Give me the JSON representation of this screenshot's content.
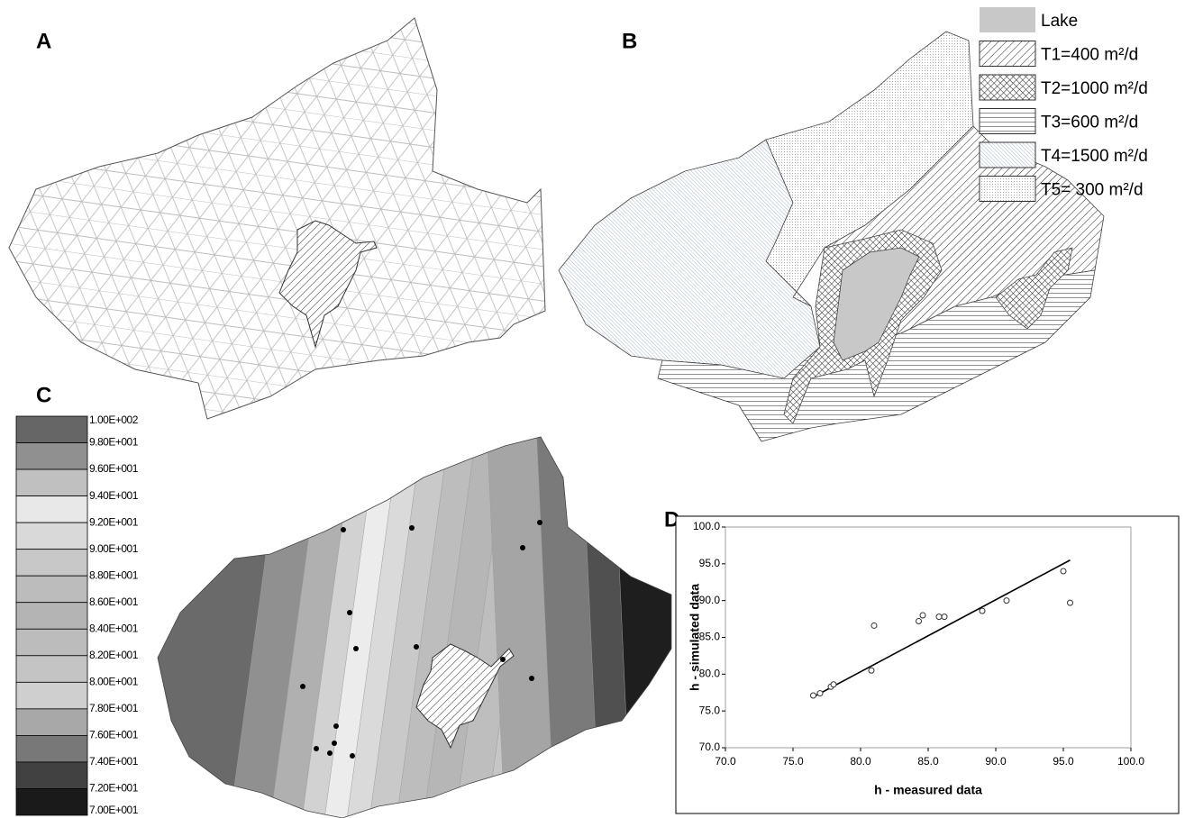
{
  "panels": {
    "a": "A",
    "b": "B",
    "c": "C",
    "d": "D"
  },
  "legend_b": [
    "Lake",
    "T1=400 m²/d",
    "T2=1000 m²/d",
    "T3=600 m²/d",
    "T4=1500 m²/d",
    "T5= 300 m²/d"
  ],
  "legend_c": [
    "1.00E+002",
    "9.80E+001",
    "9.60E+001",
    "9.40E+001",
    "9.20E+001",
    "9.00E+001",
    "8.80E+001",
    "8.60E+001",
    "8.40E+001",
    "8.20E+001",
    "8.00E+001",
    "7.80E+001",
    "7.60E+001",
    "7.40E+001",
    "7.20E+001",
    "7.00E+001"
  ],
  "chart_data": {
    "type": "scatter",
    "x": [
      76.5,
      77.0,
      77.8,
      78.0,
      80.8,
      81.0,
      84.3,
      84.6,
      85.8,
      86.2,
      89.0,
      90.8,
      95.0,
      95.5
    ],
    "values": [
      77.1,
      77.4,
      78.3,
      78.6,
      80.5,
      86.6,
      87.2,
      88.0,
      87.8,
      87.8,
      88.6,
      90.0,
      94.0,
      89.7
    ],
    "trendline": {
      "x": [
        76.5,
        95.5
      ],
      "values": [
        76.9,
        95.5
      ]
    },
    "x_label": "h - measured data",
    "y_label": "h - simulated data",
    "xlim": [
      70,
      100
    ],
    "ylim": [
      70,
      100
    ],
    "xticks": [
      {
        "value": 70,
        "label": "70.0"
      },
      {
        "value": 75,
        "label": "75.0"
      },
      {
        "value": 80,
        "label": "80.0"
      },
      {
        "value": 85,
        "label": "85.0"
      },
      {
        "value": 90,
        "label": "90.0"
      },
      {
        "value": 95,
        "label": "95.0"
      },
      {
        "value": 100,
        "label": "100.0"
      }
    ],
    "yticks": [
      {
        "value": 70,
        "label": "70.0"
      },
      {
        "value": 75,
        "label": "75.0"
      },
      {
        "value": 80,
        "label": "80.0"
      },
      {
        "value": 85,
        "label": "85.0"
      },
      {
        "value": 90,
        "label": "90.0"
      },
      {
        "value": 95,
        "label": "95.0"
      },
      {
        "value": 100,
        "label": "100.0"
      }
    ]
  }
}
